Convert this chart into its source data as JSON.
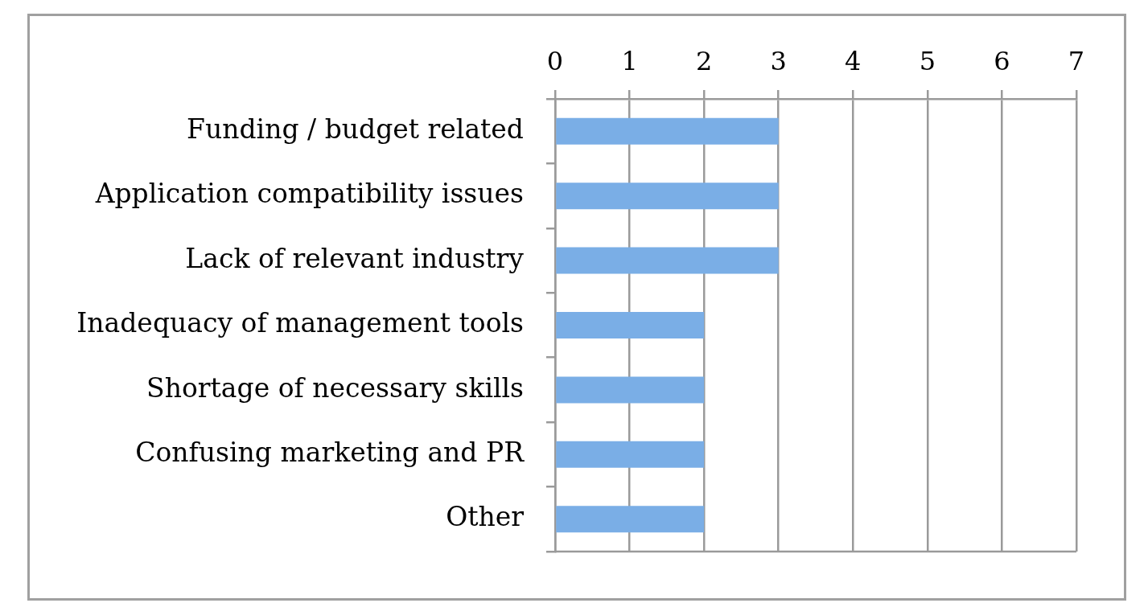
{
  "chart_data": {
    "type": "bar",
    "orientation": "horizontal",
    "categories": [
      "Funding / budget related",
      "Application compatibility issues",
      "Lack of relevant industry",
      "Inadequacy of management tools",
      "Shortage of necessary skills",
      "Confusing marketing and PR",
      "Other"
    ],
    "values": [
      3,
      3,
      3,
      2,
      2,
      2,
      2
    ],
    "color": "#7aaee6",
    "xlim": [
      0,
      7
    ],
    "xticks": [
      0,
      1,
      2,
      3,
      4,
      5,
      6,
      7
    ],
    "grid": "x"
  }
}
